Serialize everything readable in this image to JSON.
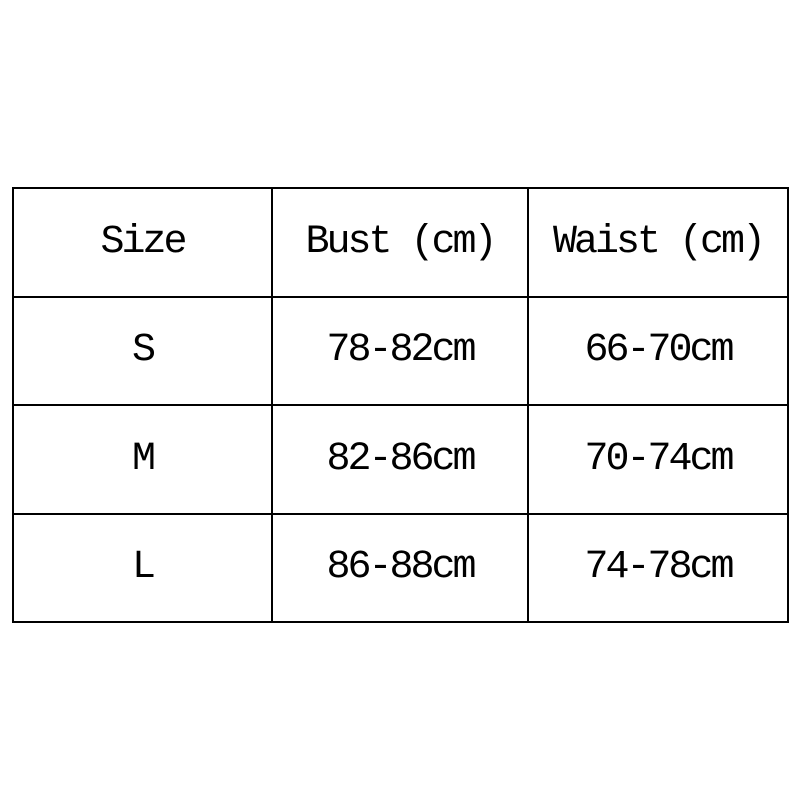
{
  "chart_data": {
    "type": "table",
    "title": "",
    "columns": [
      "Size",
      "Bust (cm)",
      "Waist (cm)"
    ],
    "rows": [
      [
        "S",
        "78-82cm",
        "66-70cm"
      ],
      [
        "M",
        "82-86cm",
        "70-74cm"
      ],
      [
        "L",
        "86-88cm",
        "74-78cm"
      ]
    ],
    "layout_hints": {
      "grid": "full-borders",
      "border_color": "#000000",
      "background": "#ffffff",
      "alignment": "center"
    }
  },
  "table": {
    "headers": [
      "Size",
      "Bust (cm)",
      "Waist (cm)"
    ],
    "rows": [
      {
        "size": "S",
        "bust": "78-82cm",
        "waist": "66-70cm"
      },
      {
        "size": "M",
        "bust": "82-86cm",
        "waist": "70-74cm"
      },
      {
        "size": "L",
        "bust": "86-88cm",
        "waist": "74-78cm"
      }
    ],
    "border_color": "#000000",
    "text_color": "#000000",
    "background": "#ffffff"
  }
}
